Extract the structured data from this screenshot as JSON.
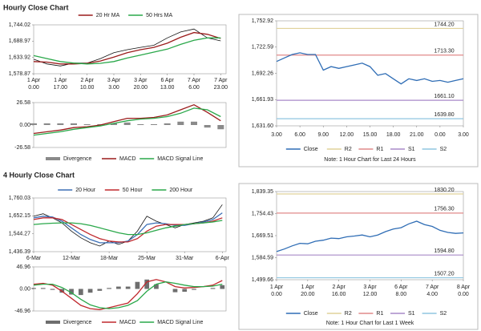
{
  "sections": [
    "Hourly Close Chart",
    "4 Hourly Close Chart"
  ],
  "chart_data": [
    {
      "type": "line",
      "legend": "top",
      "x": [
        0,
        0.5,
        1,
        1.5,
        2,
        2.5,
        3,
        3.5,
        4,
        4.5,
        5,
        5.5,
        6,
        6.5,
        7
      ],
      "xlim": [
        0,
        7.2
      ],
      "xticks": [
        {
          "value": 0,
          "label": [
            "1 Apr",
            "0.00"
          ]
        },
        {
          "value": 1,
          "label": [
            "1 Apr",
            "17.00"
          ]
        },
        {
          "value": 2,
          "label": [
            "2 Apr",
            "10.00"
          ]
        },
        {
          "value": 3,
          "label": [
            "3 Apr",
            "3.00"
          ]
        },
        {
          "value": 4,
          "label": [
            "3 Apr",
            "20.00"
          ]
        },
        {
          "value": 5,
          "label": [
            "6 Apr",
            "13.00"
          ]
        },
        {
          "value": 6,
          "label": [
            "7 Apr",
            "6.00"
          ]
        },
        {
          "value": 7,
          "label": [
            "7 Apr",
            "23.00"
          ]
        }
      ],
      "ylim": [
        1578.87,
        1744.02
      ],
      "yticks": [
        {
          "value": 1578.87,
          "label": "1,578.87"
        },
        {
          "value": 1633.92,
          "label": "1,633.92"
        },
        {
          "value": 1688.97,
          "label": "1,688.97"
        },
        {
          "value": 1744.02,
          "label": "1,744.02"
        }
      ],
      "series": [
        {
          "color": "#111111",
          "values": [
            1628,
            1612,
            1605,
            1615,
            1615,
            1630,
            1650,
            1660,
            1668,
            1675,
            1700,
            1720,
            1730,
            1700,
            1690
          ]
        },
        {
          "name": "20 Hr MA",
          "color": "#9b1c1c",
          "values": [
            1620,
            1618,
            1612,
            1612,
            1614,
            1622,
            1635,
            1650,
            1660,
            1668,
            1682,
            1702,
            1718,
            1712,
            1698
          ]
        },
        {
          "name": "50 Hrs MA",
          "color": "#2aa84a",
          "values": [
            1640,
            1630,
            1620,
            1615,
            1612,
            1614,
            1620,
            1632,
            1642,
            1652,
            1662,
            1678,
            1692,
            1700,
            1700
          ]
        }
      ]
    },
    {
      "type": "line",
      "legend": "bottom",
      "x": [
        0,
        0.5,
        1,
        1.5,
        2,
        2.5,
        3,
        3.5,
        4,
        4.5,
        5,
        5.5,
        6,
        6.5,
        7
      ],
      "xlim": [
        0,
        7.2
      ],
      "ylim": [
        -26.58,
        26.58
      ],
      "yticks": [
        -26.58,
        {
          "value": 0,
          "label": "0.00"
        },
        26.58
      ],
      "series": [
        {
          "name": "Divergence",
          "type": "bar",
          "color": "#8a8a8a",
          "values": [
            2,
            2,
            2,
            2,
            1,
            1,
            2,
            3,
            1,
            1,
            2,
            4,
            4,
            -3,
            -5
          ]
        },
        {
          "name": "MACD",
          "color": "#9b1c1c",
          "values": [
            -10,
            -8,
            -6,
            -3,
            -2,
            0,
            4,
            8,
            8,
            9,
            12,
            18,
            24,
            15,
            5
          ]
        },
        {
          "name": "MACD Signal Line",
          "color": "#2aa84a",
          "values": [
            -12,
            -10,
            -8,
            -5,
            -3,
            -1,
            2,
            5,
            7,
            8,
            10,
            14,
            20,
            18,
            10
          ]
        }
      ]
    },
    {
      "type": "line",
      "legend": "bottom",
      "note": "Note: 1 Hour Chart for Last 24 Hours",
      "x": [
        0,
        1,
        2,
        3,
        4,
        5,
        6,
        7,
        8,
        9,
        10,
        11,
        12,
        13,
        14,
        15,
        16,
        17,
        18,
        19,
        20,
        21,
        22,
        23,
        24
      ],
      "xlim": [
        0,
        24
      ],
      "xticks": [
        {
          "value": 0,
          "label": "3.00"
        },
        {
          "value": 3,
          "label": "6.00"
        },
        {
          "value": 6,
          "label": "9.00"
        },
        {
          "value": 9,
          "label": "12.00"
        },
        {
          "value": 12,
          "label": "15.00"
        },
        {
          "value": 15,
          "label": "18.00"
        },
        {
          "value": 18,
          "label": "21.00"
        },
        {
          "value": 21,
          "label": "0.00"
        },
        {
          "value": 24,
          "label": "3.00"
        }
      ],
      "ylim": [
        1631.6,
        1752.92
      ],
      "yticks": [
        {
          "value": 1631.6,
          "label": "1,631.60"
        },
        {
          "value": 1661.93,
          "label": "1,661.93"
        },
        {
          "value": 1692.26,
          "label": "1,692.26"
        },
        {
          "value": 1722.59,
          "label": "1,722.59"
        },
        {
          "value": 1752.92,
          "label": "1,752.92"
        }
      ],
      "series": [
        {
          "name": "Close",
          "color": "#2f6db5",
          "values": [
            1706,
            1710,
            1714,
            1716,
            1714,
            1714,
            1696,
            1700,
            1698,
            1700,
            1702,
            1704,
            1700,
            1690,
            1692,
            1686,
            1680,
            1686,
            1684,
            1686,
            1683,
            1684,
            1682,
            1684,
            1686
          ]
        }
      ],
      "levels": [
        {
          "name": "R2",
          "color": "#e0d29a",
          "value": 1744.2,
          "value_label": "1744.20"
        },
        {
          "name": "R1",
          "color": "#e08a8a",
          "value": 1713.3,
          "value_label": "1713.30"
        },
        {
          "name": "S1",
          "color": "#a98ac8",
          "value": 1661.1,
          "value_label": "1661.10"
        },
        {
          "name": "S2",
          "color": "#8fc6e0",
          "value": 1639.8,
          "value_label": "1639.80"
        }
      ]
    },
    {
      "type": "line",
      "legend": "top",
      "x": [
        0,
        0.25,
        0.5,
        0.75,
        1,
        1.25,
        1.5,
        1.75,
        2,
        2.25,
        2.5,
        2.75,
        3,
        3.25,
        3.5,
        3.75,
        4,
        4.25,
        4.5,
        4.75,
        5
      ],
      "xlim": [
        0,
        5.1
      ],
      "xticks": [
        {
          "value": 0,
          "label": "6-Mar"
        },
        {
          "value": 1,
          "label": "12-Mar"
        },
        {
          "value": 2,
          "label": "18-Mar"
        },
        {
          "value": 3,
          "label": "25-Mar"
        },
        {
          "value": 4,
          "label": "31-Mar"
        },
        {
          "value": 5,
          "label": "6-Apr"
        }
      ],
      "ylim": [
        1436.39,
        1760.03
      ],
      "yticks": [
        {
          "value": 1436.39,
          "label": "1,436.39"
        },
        {
          "value": 1544.27,
          "label": "1,544.27"
        },
        {
          "value": 1652.15,
          "label": "1,652.15"
        },
        {
          "value": 1760.03,
          "label": "1,760.03"
        }
      ],
      "series": [
        {
          "color": "#111111",
          "values": [
            1650,
            1665,
            1640,
            1610,
            1560,
            1520,
            1490,
            1470,
            1500,
            1480,
            1500,
            1560,
            1650,
            1620,
            1600,
            1580,
            1600,
            1610,
            1620,
            1640,
            1720
          ]
        },
        {
          "name": "20 Hour",
          "color": "#3b6fb6",
          "values": [
            1640,
            1650,
            1645,
            1620,
            1580,
            1540,
            1510,
            1490,
            1490,
            1490,
            1500,
            1540,
            1600,
            1610,
            1605,
            1595,
            1595,
            1605,
            1615,
            1630,
            1670
          ]
        },
        {
          "name": "50 Hour",
          "color": "#c0282d",
          "values": [
            1630,
            1640,
            1640,
            1630,
            1600,
            1570,
            1540,
            1515,
            1500,
            1495,
            1495,
            1515,
            1560,
            1590,
            1600,
            1600,
            1600,
            1605,
            1610,
            1620,
            1640
          ]
        },
        {
          "name": "200 Hour",
          "color": "#2aa84a",
          "values": [
            1600,
            1605,
            1608,
            1610,
            1610,
            1605,
            1595,
            1580,
            1565,
            1550,
            1540,
            1540,
            1550,
            1565,
            1580,
            1590,
            1600,
            1605,
            1610,
            1615,
            1625
          ]
        }
      ]
    },
    {
      "type": "line",
      "legend": "bottom",
      "x": [
        0,
        0.25,
        0.5,
        0.75,
        1,
        1.25,
        1.5,
        1.75,
        2,
        2.25,
        2.5,
        2.75,
        3,
        3.25,
        3.5,
        3.75,
        4,
        4.25,
        4.5,
        4.75,
        5
      ],
      "xlim": [
        0,
        5.1
      ],
      "ylim": [
        -46.96,
        46.96
      ],
      "yticks": [
        -46.96,
        {
          "value": 0,
          "label": "0.00"
        },
        46.96
      ],
      "series": [
        {
          "name": "Divergence",
          "type": "bar",
          "color": "#6e6e6e",
          "values": [
            2,
            2,
            -2,
            -8,
            -12,
            -13,
            -8,
            -4,
            2,
            5,
            5,
            15,
            20,
            10,
            0,
            -7,
            -6,
            -2,
            0,
            2,
            8
          ]
        },
        {
          "name": "MACD",
          "color": "#c0282d",
          "values": [
            10,
            12,
            8,
            -5,
            -20,
            -35,
            -42,
            -44,
            -40,
            -35,
            -30,
            -10,
            15,
            20,
            15,
            5,
            2,
            3,
            5,
            8,
            18
          ]
        },
        {
          "name": "MACD Signal Line",
          "color": "#2aa84a",
          "values": [
            8,
            10,
            10,
            3,
            -8,
            -22,
            -34,
            -40,
            -42,
            -40,
            -35,
            -25,
            -5,
            10,
            15,
            12,
            8,
            5,
            5,
            6,
            10
          ]
        }
      ]
    },
    {
      "type": "line",
      "legend": "bottom",
      "note": "Note: 1 Hour Chart for Last 1 Week",
      "x": [
        0,
        0.25,
        0.5,
        0.75,
        1,
        1.25,
        1.5,
        1.75,
        2,
        2.25,
        2.5,
        2.75,
        3,
        3.25,
        3.5,
        3.75,
        4,
        4.25,
        4.5,
        4.75,
        5,
        5.25,
        5.5,
        5.75,
        6
      ],
      "xlim": [
        0,
        6
      ],
      "xticks": [
        {
          "value": 0,
          "label": [
            "1 Apr",
            "0.00"
          ]
        },
        {
          "value": 1,
          "label": [
            "1 Apr",
            "20.00"
          ]
        },
        {
          "value": 2,
          "label": [
            "2 Apr",
            "16.00"
          ]
        },
        {
          "value": 3,
          "label": [
            "3 Apr",
            "12.00"
          ]
        },
        {
          "value": 4,
          "label": [
            "6 Apr",
            "8.00"
          ]
        },
        {
          "value": 5,
          "label": [
            "7 Apr",
            "4.00"
          ]
        },
        {
          "value": 6,
          "label": [
            "8 Apr",
            "0.00"
          ]
        }
      ],
      "ylim": [
        1499.66,
        1839.35
      ],
      "yticks": [
        {
          "value": 1499.66,
          "label": "1,499.66"
        },
        {
          "value": 1584.59,
          "label": "1,584.59"
        },
        {
          "value": 1669.51,
          "label": "1,669.51"
        },
        {
          "value": 1754.43,
          "label": "1,754.43"
        },
        {
          "value": 1839.35,
          "label": "1,839.35"
        }
      ],
      "series": [
        {
          "name": "Close",
          "color": "#2f6db5",
          "values": [
            1608,
            1618,
            1630,
            1640,
            1638,
            1648,
            1652,
            1660,
            1658,
            1665,
            1668,
            1672,
            1665,
            1672,
            1685,
            1695,
            1700,
            1715,
            1725,
            1712,
            1705,
            1690,
            1682,
            1678,
            1680
          ]
        }
      ],
      "levels": [
        {
          "name": "R2",
          "color": "#e0d29a",
          "value": 1830.2,
          "value_label": "1830.20"
        },
        {
          "name": "R1",
          "color": "#e08a8a",
          "value": 1756.3,
          "value_label": "1756.30"
        },
        {
          "name": "S1",
          "color": "#a98ac8",
          "value": 1594.8,
          "value_label": "1594.80"
        },
        {
          "name": "S2",
          "color": "#8fc6e0",
          "value": 1507.2,
          "value_label": "1507.20"
        }
      ]
    }
  ]
}
